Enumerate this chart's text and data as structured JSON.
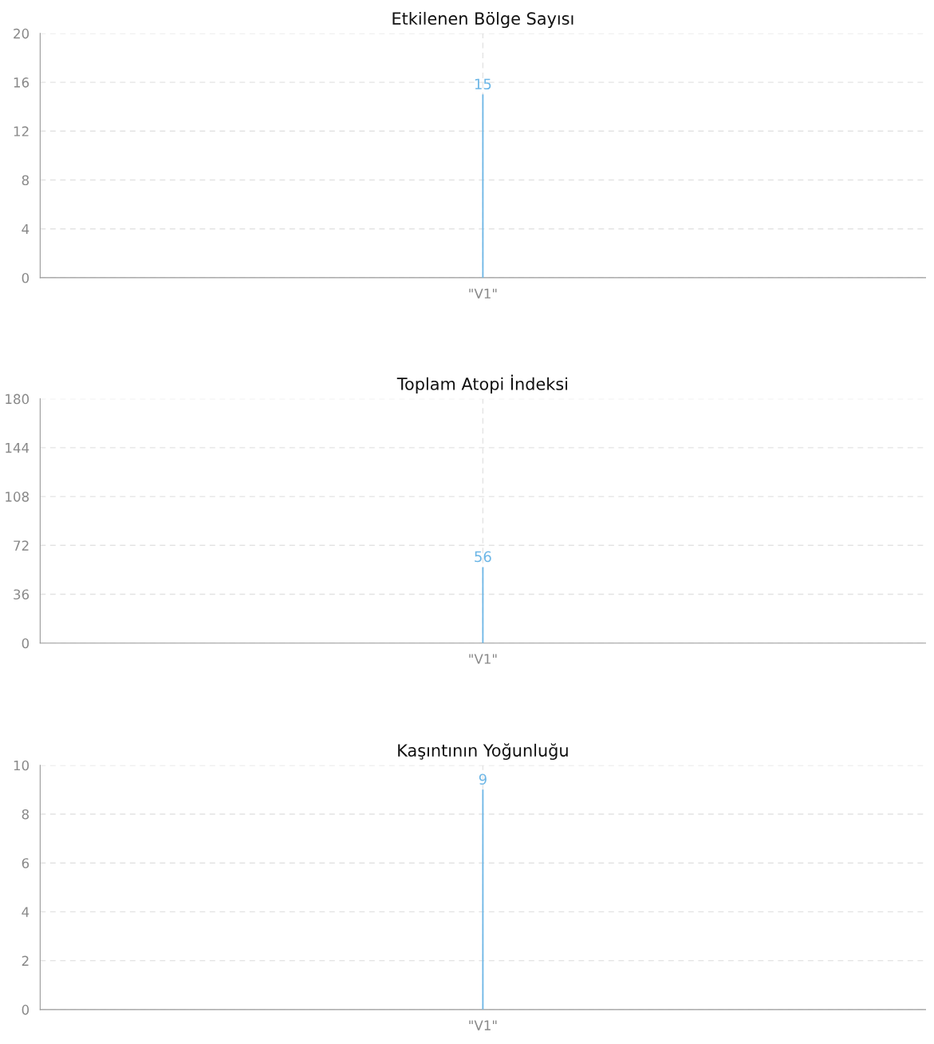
{
  "chart_data": [
    {
      "type": "bar",
      "title": "Etkilenen Bölge Sayısı",
      "categories": [
        "\"V1\""
      ],
      "values": [
        15
      ],
      "color": "#6cb6e6",
      "ylim": [
        0,
        20
      ],
      "yticks": [
        0,
        4,
        8,
        12,
        16,
        20
      ],
      "grid": true,
      "data_labels": true
    },
    {
      "type": "bar",
      "title": "Toplam Atopi İndeksi",
      "categories": [
        "\"V1\""
      ],
      "values": [
        56
      ],
      "color": "#6cb6e6",
      "ylim": [
        0,
        180
      ],
      "yticks": [
        0,
        36,
        72,
        108,
        144,
        180
      ],
      "grid": true,
      "data_labels": true
    },
    {
      "type": "bar",
      "title": "Kaşıntının Yoğunluğu",
      "categories": [
        "\"V1\""
      ],
      "values": [
        9
      ],
      "color": "#6cb6e6",
      "ylim": [
        0,
        10
      ],
      "yticks": [
        0,
        2,
        4,
        6,
        8,
        10
      ],
      "grid": true,
      "data_labels": true
    }
  ]
}
